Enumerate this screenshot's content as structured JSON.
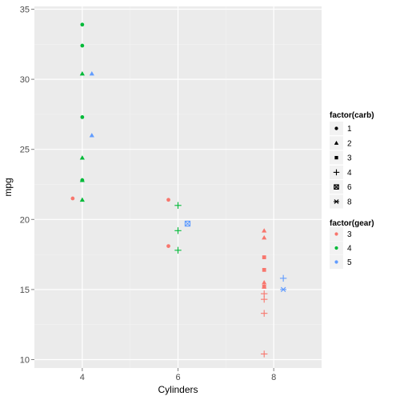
{
  "chart_data": {
    "type": "scatter",
    "title": "",
    "xlabel": "Cylinders",
    "ylabel": "mpg",
    "xlim": [
      3,
      9
    ],
    "ylim": [
      9.4,
      35.2
    ],
    "x_ticks": [
      4,
      6,
      8
    ],
    "y_ticks": [
      10,
      15,
      20,
      25,
      30,
      35
    ],
    "grid": true,
    "panel_background": "#ebebeb",
    "grid_color": "#ffffff",
    "legends": [
      {
        "title": "factor(carb)",
        "kind": "shape",
        "placement": "right",
        "entries": [
          {
            "label": "1",
            "shape": "circle"
          },
          {
            "label": "2",
            "shape": "triangle"
          },
          {
            "label": "3",
            "shape": "square"
          },
          {
            "label": "4",
            "shape": "plus"
          },
          {
            "label": "6",
            "shape": "square-cross"
          },
          {
            "label": "8",
            "shape": "asterisk"
          }
        ]
      },
      {
        "title": "factor(gear)",
        "kind": "color",
        "placement": "right",
        "entries": [
          {
            "label": "3",
            "color": "#f8766d"
          },
          {
            "label": "4",
            "color": "#00ba38"
          },
          {
            "label": "5",
            "color": "#619cff"
          }
        ]
      }
    ],
    "points": [
      {
        "x": 3.8,
        "y": 21.5,
        "carb": "1",
        "gear": "3"
      },
      {
        "x": 4.0,
        "y": 33.9,
        "carb": "1",
        "gear": "4"
      },
      {
        "x": 4.0,
        "y": 32.4,
        "carb": "1",
        "gear": "4"
      },
      {
        "x": 4.0,
        "y": 30.4,
        "carb": "2",
        "gear": "4"
      },
      {
        "x": 4.0,
        "y": 27.3,
        "carb": "1",
        "gear": "4"
      },
      {
        "x": 4.0,
        "y": 24.4,
        "carb": "2",
        "gear": "4"
      },
      {
        "x": 4.0,
        "y": 22.8,
        "carb": "1",
        "gear": "4"
      },
      {
        "x": 4.0,
        "y": 22.8,
        "carb": "2",
        "gear": "4"
      },
      {
        "x": 4.0,
        "y": 21.4,
        "carb": "2",
        "gear": "4"
      },
      {
        "x": 4.2,
        "y": 30.4,
        "carb": "2",
        "gear": "5"
      },
      {
        "x": 4.2,
        "y": 26.0,
        "carb": "2",
        "gear": "5"
      },
      {
        "x": 5.8,
        "y": 21.4,
        "carb": "1",
        "gear": "3"
      },
      {
        "x": 5.8,
        "y": 18.1,
        "carb": "1",
        "gear": "3"
      },
      {
        "x": 6.0,
        "y": 21.0,
        "carb": "4",
        "gear": "4"
      },
      {
        "x": 6.0,
        "y": 19.2,
        "carb": "4",
        "gear": "4"
      },
      {
        "x": 6.0,
        "y": 17.8,
        "carb": "4",
        "gear": "4"
      },
      {
        "x": 6.2,
        "y": 19.7,
        "carb": "6",
        "gear": "5"
      },
      {
        "x": 7.8,
        "y": 19.2,
        "carb": "2",
        "gear": "3"
      },
      {
        "x": 7.8,
        "y": 18.7,
        "carb": "2",
        "gear": "3"
      },
      {
        "x": 7.8,
        "y": 17.3,
        "carb": "3",
        "gear": "3"
      },
      {
        "x": 7.8,
        "y": 16.4,
        "carb": "3",
        "gear": "3"
      },
      {
        "x": 7.8,
        "y": 15.5,
        "carb": "2",
        "gear": "3"
      },
      {
        "x": 7.8,
        "y": 15.2,
        "carb": "2",
        "gear": "3"
      },
      {
        "x": 7.8,
        "y": 15.2,
        "carb": "3",
        "gear": "3"
      },
      {
        "x": 7.8,
        "y": 14.7,
        "carb": "4",
        "gear": "3"
      },
      {
        "x": 7.8,
        "y": 14.3,
        "carb": "4",
        "gear": "3"
      },
      {
        "x": 7.8,
        "y": 13.3,
        "carb": "4",
        "gear": "3"
      },
      {
        "x": 7.8,
        "y": 10.4,
        "carb": "4",
        "gear": "3"
      },
      {
        "x": 8.2,
        "y": 15.8,
        "carb": "4",
        "gear": "5"
      },
      {
        "x": 8.2,
        "y": 15.0,
        "carb": "8",
        "gear": "5"
      }
    ]
  }
}
